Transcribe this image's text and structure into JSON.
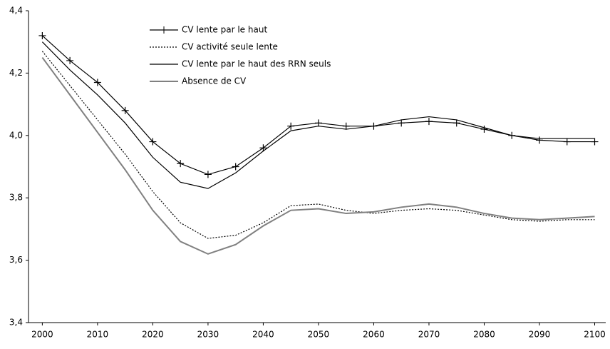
{
  "chart_data": {
    "type": "line",
    "x": [
      2000,
      2005,
      2010,
      2015,
      2020,
      2025,
      2030,
      2035,
      2040,
      2045,
      2050,
      2055,
      2060,
      2065,
      2070,
      2075,
      2080,
      2085,
      2090,
      2095,
      2100
    ],
    "series": [
      {
        "name": "CV lente par le haut",
        "color": "#000000",
        "style": "solid",
        "marker": "plus",
        "values": [
          4.32,
          4.24,
          4.17,
          4.08,
          3.98,
          3.91,
          3.875,
          3.9,
          3.96,
          4.03,
          4.04,
          4.03,
          4.03,
          4.04,
          4.045,
          4.04,
          4.02,
          4.0,
          3.985,
          3.98,
          3.98
        ]
      },
      {
        "name": "CV activité seule lente",
        "color": "#000000",
        "style": "dotted",
        "marker": "none",
        "values": [
          4.27,
          4.16,
          4.05,
          3.94,
          3.82,
          3.72,
          3.67,
          3.68,
          3.72,
          3.775,
          3.78,
          3.76,
          3.75,
          3.76,
          3.765,
          3.76,
          3.745,
          3.73,
          3.725,
          3.73,
          3.73
        ]
      },
      {
        "name": "CV lente par le haut des RRN seuls",
        "color": "#000000",
        "style": "solid",
        "marker": "none",
        "values": [
          4.3,
          4.21,
          4.13,
          4.04,
          3.93,
          3.85,
          3.83,
          3.88,
          3.95,
          4.015,
          4.03,
          4.02,
          4.03,
          4.05,
          4.06,
          4.05,
          4.025,
          4.0,
          3.99,
          3.99,
          3.99
        ]
      },
      {
        "name": "Absence de CV",
        "color": "#808080",
        "style": "solid",
        "marker": "none",
        "values": [
          4.25,
          4.13,
          4.01,
          3.89,
          3.76,
          3.66,
          3.62,
          3.65,
          3.71,
          3.76,
          3.765,
          3.75,
          3.755,
          3.77,
          3.78,
          3.77,
          3.75,
          3.735,
          3.73,
          3.735,
          3.74
        ]
      }
    ],
    "xlim": [
      1997.5,
      2102
    ],
    "xticks": [
      2000,
      2010,
      2020,
      2030,
      2040,
      2050,
      2060,
      2070,
      2080,
      2090,
      2100
    ],
    "ylim": [
      3.4,
      4.4
    ],
    "yticks": [
      {
        "value": 3.4,
        "label": "3,4"
      },
      {
        "value": 3.6,
        "label": "3,6"
      },
      {
        "value": 3.8,
        "label": "3,8"
      },
      {
        "value": 4.0,
        "label": "4,0"
      },
      {
        "value": 4.2,
        "label": "4,2"
      },
      {
        "value": 4.4,
        "label": "4,4"
      }
    ],
    "grid": false,
    "legend": "top-left"
  }
}
